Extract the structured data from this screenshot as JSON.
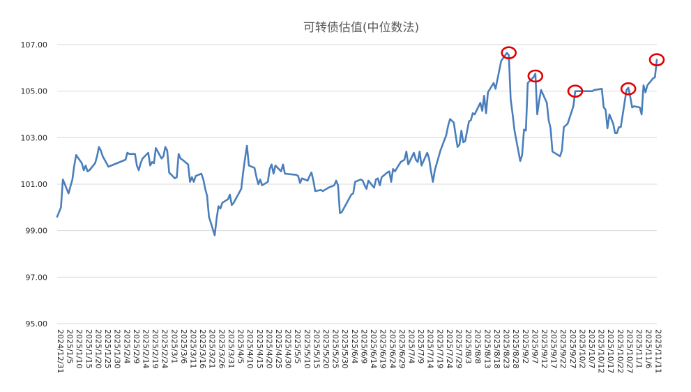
{
  "chart_data": {
    "type": "line",
    "title": "可转债估值(中位数法)",
    "xlabel": "",
    "ylabel": "",
    "ylim": [
      95,
      107
    ],
    "yticks": [
      "95.00",
      "97.00",
      "99.00",
      "101.00",
      "103.00",
      "105.00",
      "107.00"
    ],
    "grid": "horizontal",
    "legend": "none",
    "xtick_labels": [
      "2024/12/31",
      "2025/1/5",
      "2025/1/10",
      "2025/1/15",
      "2025/1/20",
      "2025/1/25",
      "2025/1/30",
      "2025/2/4",
      "2025/2/9",
      "2025/2/14",
      "2025/2/19",
      "2025/2/24",
      "2025/3/1",
      "2025/3/6",
      "2025/3/11",
      "2025/3/16",
      "2025/3/21",
      "2025/3/26",
      "2025/3/31",
      "2025/4/5",
      "2025/4/10",
      "2025/4/15",
      "2025/4/20",
      "2025/4/25",
      "2025/4/30",
      "2025/5/5",
      "2025/5/10",
      "2025/5/15",
      "2025/5/20",
      "2025/5/25",
      "2025/5/30",
      "2025/6/4",
      "2025/6/9",
      "2025/6/14",
      "2025/6/19",
      "2025/6/24",
      "2025/6/29",
      "2025/7/4",
      "2025/7/9",
      "2025/7/14",
      "2025/7/19",
      "2025/7/24",
      "2025/7/29",
      "2025/8/3",
      "2025/8/8",
      "2025/8/13",
      "2025/8/18",
      "2025/8/23",
      "2025/8/28",
      "2025/9/2",
      "2025/9/7",
      "2025/9/12",
      "2025/9/17",
      "2025/9/22",
      "2025/9/27",
      "2025/10/2",
      "2025/10/7",
      "2025/10/12",
      "2025/10/17",
      "2025/10/22",
      "2025/10/27",
      "2025/11/1",
      "2025/11/6",
      "2025/11/11"
    ],
    "series": [
      {
        "color": "#4a7ebb",
        "points": [
          [
            "2024/12/31",
            99.6
          ],
          [
            "2025/1/2",
            100.0
          ],
          [
            "2025/1/3",
            101.2
          ],
          [
            "2025/1/4",
            101.0
          ],
          [
            "2025/1/5",
            100.8
          ],
          [
            "2025/1/6",
            100.6
          ],
          [
            "2025/1/8",
            101.2
          ],
          [
            "2025/1/9",
            101.8
          ],
          [
            "2025/1/10",
            102.25
          ],
          [
            "2025/1/13",
            101.9
          ],
          [
            "2025/1/14",
            101.6
          ],
          [
            "2025/1/15",
            101.8
          ],
          [
            "2025/1/16",
            101.55
          ],
          [
            "2025/1/17",
            101.6
          ],
          [
            "2025/1/20",
            101.9
          ],
          [
            "2025/1/21",
            102.2
          ],
          [
            "2025/1/22",
            102.6
          ],
          [
            "2025/1/23",
            102.45
          ],
          [
            "2025/1/24",
            102.2
          ],
          [
            "2025/1/27",
            101.75
          ],
          [
            "2025/2/5",
            102.05
          ],
          [
            "2025/2/6",
            102.35
          ],
          [
            "2025/2/7",
            102.3
          ],
          [
            "2025/2/10",
            102.3
          ],
          [
            "2025/2/11",
            101.8
          ],
          [
            "2025/2/12",
            101.6
          ],
          [
            "2025/2/13",
            101.9
          ],
          [
            "2025/2/14",
            102.1
          ],
          [
            "2025/2/17",
            102.35
          ],
          [
            "2025/2/18",
            101.8
          ],
          [
            "2025/2/19",
            101.95
          ],
          [
            "2025/2/20",
            101.9
          ],
          [
            "2025/2/21",
            102.55
          ],
          [
            "2025/2/24",
            102.1
          ],
          [
            "2025/2/25",
            102.2
          ],
          [
            "2025/2/26",
            102.6
          ],
          [
            "2025/2/27",
            102.45
          ],
          [
            "2025/2/28",
            101.5
          ],
          [
            "2025/3/3",
            101.25
          ],
          [
            "2025/3/4",
            101.3
          ],
          [
            "2025/3/5",
            102.3
          ],
          [
            "2025/3/6",
            102.1
          ],
          [
            "2025/3/7",
            102.05
          ],
          [
            "2025/3/10",
            101.85
          ],
          [
            "2025/3/11",
            101.1
          ],
          [
            "2025/3/12",
            101.3
          ],
          [
            "2025/3/13",
            101.1
          ],
          [
            "2025/3/14",
            101.35
          ],
          [
            "2025/3/17",
            101.45
          ],
          [
            "2025/3/18",
            101.2
          ],
          [
            "2025/3/19",
            100.8
          ],
          [
            "2025/3/20",
            100.5
          ],
          [
            "2025/3/21",
            99.6
          ],
          [
            "2025/3/24",
            98.8
          ],
          [
            "2025/3/25",
            99.5
          ],
          [
            "2025/3/26",
            100.05
          ],
          [
            "2025/3/27",
            99.95
          ],
          [
            "2025/3/28",
            100.2
          ],
          [
            "2025/3/31",
            100.35
          ],
          [
            "2025/4/1",
            100.55
          ],
          [
            "2025/4/2",
            100.1
          ],
          [
            "2025/4/3",
            100.2
          ],
          [
            "2025/4/7",
            100.8
          ],
          [
            "2025/4/8",
            101.5
          ],
          [
            "2025/4/9",
            102.1
          ],
          [
            "2025/4/10",
            102.65
          ],
          [
            "2025/4/11",
            101.8
          ],
          [
            "2025/4/14",
            101.7
          ],
          [
            "2025/4/15",
            101.3
          ],
          [
            "2025/4/16",
            101.0
          ],
          [
            "2025/4/17",
            101.2
          ],
          [
            "2025/4/18",
            100.95
          ],
          [
            "2025/4/21",
            101.1
          ],
          [
            "2025/4/22",
            101.65
          ],
          [
            "2025/4/23",
            101.85
          ],
          [
            "2025/4/24",
            101.45
          ],
          [
            "2025/4/25",
            101.8
          ],
          [
            "2025/4/28",
            101.55
          ],
          [
            "2025/4/29",
            101.85
          ],
          [
            "2025/4/30",
            101.45
          ],
          [
            "2025/5/6",
            101.4
          ],
          [
            "2025/5/7",
            101.35
          ],
          [
            "2025/5/8",
            101.05
          ],
          [
            "2025/5/9",
            101.25
          ],
          [
            "2025/5/12",
            101.15
          ],
          [
            "2025/5/13",
            101.35
          ],
          [
            "2025/5/14",
            101.5
          ],
          [
            "2025/5/15",
            101.15
          ],
          [
            "2025/5/16",
            100.7
          ],
          [
            "2025/5/19",
            100.75
          ],
          [
            "2025/5/20",
            100.7
          ],
          [
            "2025/5/21",
            100.75
          ],
          [
            "2025/5/22",
            100.8
          ],
          [
            "2025/5/23",
            100.85
          ],
          [
            "2025/5/26",
            100.95
          ],
          [
            "2025/5/27",
            101.15
          ],
          [
            "2025/5/28",
            100.95
          ],
          [
            "2025/5/29",
            99.75
          ],
          [
            "2025/5/30",
            99.8
          ],
          [
            "2025/6/3",
            100.4
          ],
          [
            "2025/6/4",
            100.55
          ],
          [
            "2025/6/5",
            100.6
          ],
          [
            "2025/6/6",
            101.1
          ],
          [
            "2025/6/9",
            101.2
          ],
          [
            "2025/6/10",
            101.15
          ],
          [
            "2025/6/11",
            100.95
          ],
          [
            "2025/6/12",
            100.8
          ],
          [
            "2025/6/13",
            101.15
          ],
          [
            "2025/6/16",
            100.85
          ],
          [
            "2025/6/17",
            101.2
          ],
          [
            "2025/6/18",
            101.25
          ],
          [
            "2025/6/19",
            100.95
          ],
          [
            "2025/6/20",
            101.3
          ],
          [
            "2025/6/23",
            101.5
          ],
          [
            "2025/6/24",
            101.55
          ],
          [
            "2025/6/25",
            101.1
          ],
          [
            "2025/6/26",
            101.65
          ],
          [
            "2025/6/27",
            101.55
          ],
          [
            "2025/6/30",
            101.95
          ],
          [
            "2025/7/1",
            102.0
          ],
          [
            "2025/7/2",
            102.05
          ],
          [
            "2025/7/3",
            102.4
          ],
          [
            "2025/7/4",
            101.85
          ],
          [
            "2025/7/7",
            102.35
          ],
          [
            "2025/7/8",
            102.05
          ],
          [
            "2025/7/9",
            101.95
          ],
          [
            "2025/7/10",
            102.4
          ],
          [
            "2025/7/11",
            101.8
          ],
          [
            "2025/7/14",
            102.35
          ],
          [
            "2025/7/15",
            102.1
          ],
          [
            "2025/7/16",
            101.55
          ],
          [
            "2025/7/17",
            101.1
          ],
          [
            "2025/7/18",
            101.6
          ],
          [
            "2025/7/21",
            102.45
          ],
          [
            "2025/7/24",
            103.1
          ],
          [
            "2025/7/25",
            103.5
          ],
          [
            "2025/7/26",
            103.8
          ],
          [
            "2025/7/28",
            103.65
          ],
          [
            "2025/7/29",
            103.1
          ],
          [
            "2025/7/30",
            102.6
          ],
          [
            "2025/7/31",
            102.7
          ],
          [
            "2025/8/1",
            103.3
          ],
          [
            "2025/8/2",
            102.8
          ],
          [
            "2025/8/3",
            102.85
          ],
          [
            "2025/8/5",
            103.7
          ],
          [
            "2025/8/6",
            103.75
          ],
          [
            "2025/8/7",
            104.05
          ],
          [
            "2025/8/8",
            104.0
          ],
          [
            "2025/8/11",
            104.5
          ],
          [
            "2025/8/12",
            104.15
          ],
          [
            "2025/8/13",
            104.8
          ],
          [
            "2025/8/14",
            104.05
          ],
          [
            "2025/8/15",
            104.95
          ],
          [
            "2025/8/18",
            105.35
          ],
          [
            "2025/8/19",
            105.1
          ],
          [
            "2025/8/22",
            106.3
          ],
          [
            "2025/8/25",
            106.65
          ],
          [
            "2025/8/26",
            106.55
          ],
          [
            "2025/8/27",
            104.65
          ],
          [
            "2025/8/28",
            104.0
          ],
          [
            "2025/8/29",
            103.3
          ],
          [
            "2025/9/1",
            102.0
          ],
          [
            "2025/9/2",
            102.25
          ],
          [
            "2025/9/3",
            103.35
          ],
          [
            "2025/9/4",
            103.3
          ],
          [
            "2025/9/5",
            105.35
          ],
          [
            "2025/9/8",
            105.6
          ],
          [
            "2025/9/9",
            105.75
          ],
          [
            "2025/9/10",
            104.0
          ],
          [
            "2025/9/11",
            104.6
          ],
          [
            "2025/9/12",
            105.05
          ],
          [
            "2025/9/15",
            104.5
          ],
          [
            "2025/9/16",
            103.75
          ],
          [
            "2025/9/17",
            103.4
          ],
          [
            "2025/9/18",
            102.4
          ],
          [
            "2025/9/22",
            102.2
          ],
          [
            "2025/9/23",
            102.45
          ],
          [
            "2025/9/24",
            103.45
          ],
          [
            "2025/9/26",
            103.6
          ],
          [
            "2025/9/29",
            104.35
          ],
          [
            "2025/9/30",
            105.0
          ],
          [
            "2025/10/9",
            105.0
          ],
          [
            "2025/10/10",
            105.05
          ],
          [
            "2025/10/14",
            105.1
          ],
          [
            "2025/10/15",
            104.3
          ],
          [
            "2025/10/16",
            104.2
          ],
          [
            "2025/10/17",
            103.4
          ],
          [
            "2025/10/18",
            104.0
          ],
          [
            "2025/10/20",
            103.6
          ],
          [
            "2025/10/21",
            103.2
          ],
          [
            "2025/10/22",
            103.2
          ],
          [
            "2025/10/23",
            103.45
          ],
          [
            "2025/10/24",
            103.45
          ],
          [
            "2025/10/27",
            105.05
          ],
          [
            "2025/10/28",
            105.15
          ],
          [
            "2025/10/29",
            104.75
          ],
          [
            "2025/10/30",
            104.3
          ],
          [
            "2025/10/31",
            104.35
          ],
          [
            "2025/11/3",
            104.3
          ],
          [
            "2025/11/4",
            104.0
          ],
          [
            "2025/11/5",
            105.25
          ],
          [
            "2025/11/6",
            104.95
          ],
          [
            "2025/11/7",
            105.25
          ],
          [
            "2025/11/10",
            105.55
          ],
          [
            "2025/11/11",
            105.6
          ],
          [
            "2025/11/12",
            106.35
          ]
        ]
      }
    ],
    "annotations": [
      {
        "shape": "circle",
        "color": "#e00000",
        "x": "2025/8/26",
        "y": 106.65
      },
      {
        "shape": "circle",
        "color": "#e00000",
        "x": "2025/9/9",
        "y": 105.65
      },
      {
        "shape": "circle",
        "color": "#e00000",
        "x": "2025/9/30",
        "y": 105.0
      },
      {
        "shape": "circle",
        "color": "#e00000",
        "x": "2025/10/28",
        "y": 105.1
      },
      {
        "shape": "circle",
        "color": "#e00000",
        "x": "2025/11/12",
        "y": 106.35
      }
    ]
  }
}
